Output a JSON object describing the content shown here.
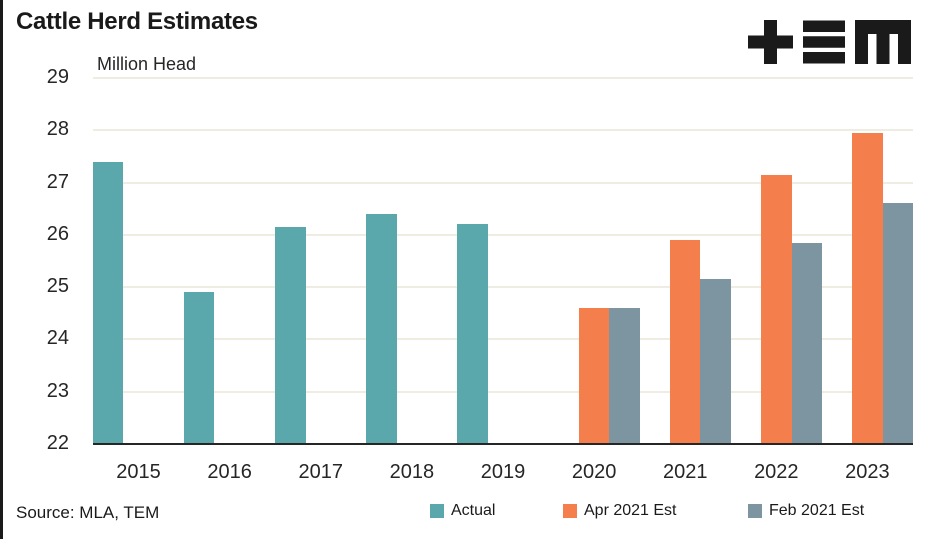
{
  "title": "Cattle Herd Estimates",
  "subtitle": "Million Head",
  "source": "Source: MLA, TEM",
  "icons": {
    "logo": "tem-logo"
  },
  "colors": {
    "actual": "#5AA7AC",
    "apr_2021_est": "#F57E4D",
    "feb_2021_est": "#7C95A1",
    "gridline": "#EFEDE2",
    "axis": "#262626",
    "text": "#1A1A1A",
    "logo": "#1A1A1A"
  },
  "chart_data": {
    "type": "bar",
    "title": "Cattle Herd Estimates",
    "ylabel": "Million Head",
    "categories": [
      "2015",
      "2016",
      "2017",
      "2018",
      "2019",
      "2020",
      "2021",
      "2022",
      "2023"
    ],
    "series": [
      {
        "name": "Actual",
        "color": "#5AA7AC",
        "values": [
          27.4,
          24.9,
          26.15,
          26.4,
          26.2,
          null,
          null,
          null,
          null
        ]
      },
      {
        "name": "Apr 2021 Est",
        "color": "#F57E4D",
        "values": [
          null,
          null,
          null,
          null,
          null,
          24.6,
          25.9,
          27.15,
          27.95
        ]
      },
      {
        "name": "Feb 2021 Est",
        "color": "#7C95A1",
        "values": [
          null,
          null,
          null,
          null,
          null,
          24.6,
          25.15,
          25.85,
          26.6
        ]
      }
    ],
    "ylim": [
      22,
      29
    ],
    "ytick_step": 1,
    "yticks": [
      22,
      23,
      24,
      25,
      26,
      27,
      28,
      29
    ],
    "grid": true,
    "legend_position": "bottom"
  }
}
